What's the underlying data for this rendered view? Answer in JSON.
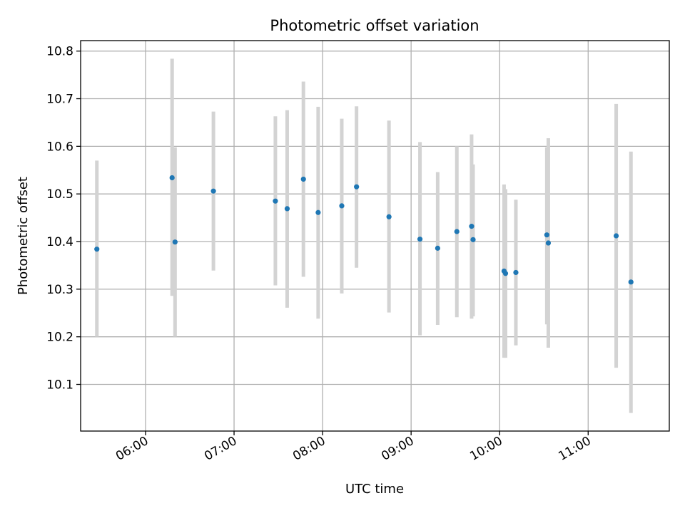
{
  "chart_data": {
    "type": "scatter",
    "title": "Photometric offset variation",
    "xlabel": "UTC time",
    "ylabel": "Photometric offset",
    "x_unit": "UTC time",
    "xlim": [
      "05:16",
      "11:55"
    ],
    "ylim": [
      10.002,
      10.822
    ],
    "x_ticks": [
      "06:00",
      "07:00",
      "08:00",
      "09:00",
      "10:00",
      "11:00"
    ],
    "y_ticks": [
      10.1,
      10.2,
      10.3,
      10.4,
      10.5,
      10.6,
      10.7,
      10.8
    ],
    "y_tick_labels": [
      "10.1",
      "10.2",
      "10.3",
      "10.4",
      "10.5",
      "10.6",
      "10.7",
      "10.8"
    ],
    "grid": true,
    "legend": "none",
    "colors": {
      "point": "#1f77b4",
      "errorbar": "#d3d3d3",
      "grid": "#b0b0b0"
    },
    "points": [
      {
        "x": "05:27",
        "y": 10.384,
        "ylow": 10.2,
        "yhigh": 10.57
      },
      {
        "x": "06:18",
        "y": 10.534,
        "ylow": 10.286,
        "yhigh": 10.784
      },
      {
        "x": "06:20",
        "y": 10.399,
        "ylow": 10.2,
        "yhigh": 10.598
      },
      {
        "x": "06:46",
        "y": 10.506,
        "ylow": 10.339,
        "yhigh": 10.673
      },
      {
        "x": "07:28",
        "y": 10.485,
        "ylow": 10.308,
        "yhigh": 10.663
      },
      {
        "x": "07:36",
        "y": 10.469,
        "ylow": 10.261,
        "yhigh": 10.676
      },
      {
        "x": "07:47",
        "y": 10.531,
        "ylow": 10.326,
        "yhigh": 10.736
      },
      {
        "x": "07:57",
        "y": 10.461,
        "ylow": 10.238,
        "yhigh": 10.683
      },
      {
        "x": "08:13",
        "y": 10.475,
        "ylow": 10.291,
        "yhigh": 10.658
      },
      {
        "x": "08:23",
        "y": 10.515,
        "ylow": 10.345,
        "yhigh": 10.684
      },
      {
        "x": "08:45",
        "y": 10.452,
        "ylow": 10.251,
        "yhigh": 10.654
      },
      {
        "x": "09:06",
        "y": 10.405,
        "ylow": 10.203,
        "yhigh": 10.609
      },
      {
        "x": "09:18",
        "y": 10.386,
        "ylow": 10.225,
        "yhigh": 10.546
      },
      {
        "x": "09:31",
        "y": 10.421,
        "ylow": 10.241,
        "yhigh": 10.6
      },
      {
        "x": "09:41",
        "y": 10.432,
        "ylow": 10.238,
        "yhigh": 10.625
      },
      {
        "x": "09:42",
        "y": 10.404,
        "ylow": 10.243,
        "yhigh": 10.562
      },
      {
        "x": "10:03",
        "y": 10.338,
        "ylow": 10.156,
        "yhigh": 10.52
      },
      {
        "x": "10:04",
        "y": 10.333,
        "ylow": 10.156,
        "yhigh": 10.51
      },
      {
        "x": "10:11",
        "y": 10.335,
        "ylow": 10.182,
        "yhigh": 10.488
      },
      {
        "x": "10:32",
        "y": 10.414,
        "ylow": 10.226,
        "yhigh": 10.598
      },
      {
        "x": "10:33",
        "y": 10.397,
        "ylow": 10.177,
        "yhigh": 10.617
      },
      {
        "x": "11:19",
        "y": 10.412,
        "ylow": 10.135,
        "yhigh": 10.689
      },
      {
        "x": "11:29",
        "y": 10.315,
        "ylow": 10.04,
        "yhigh": 10.589
      }
    ]
  }
}
